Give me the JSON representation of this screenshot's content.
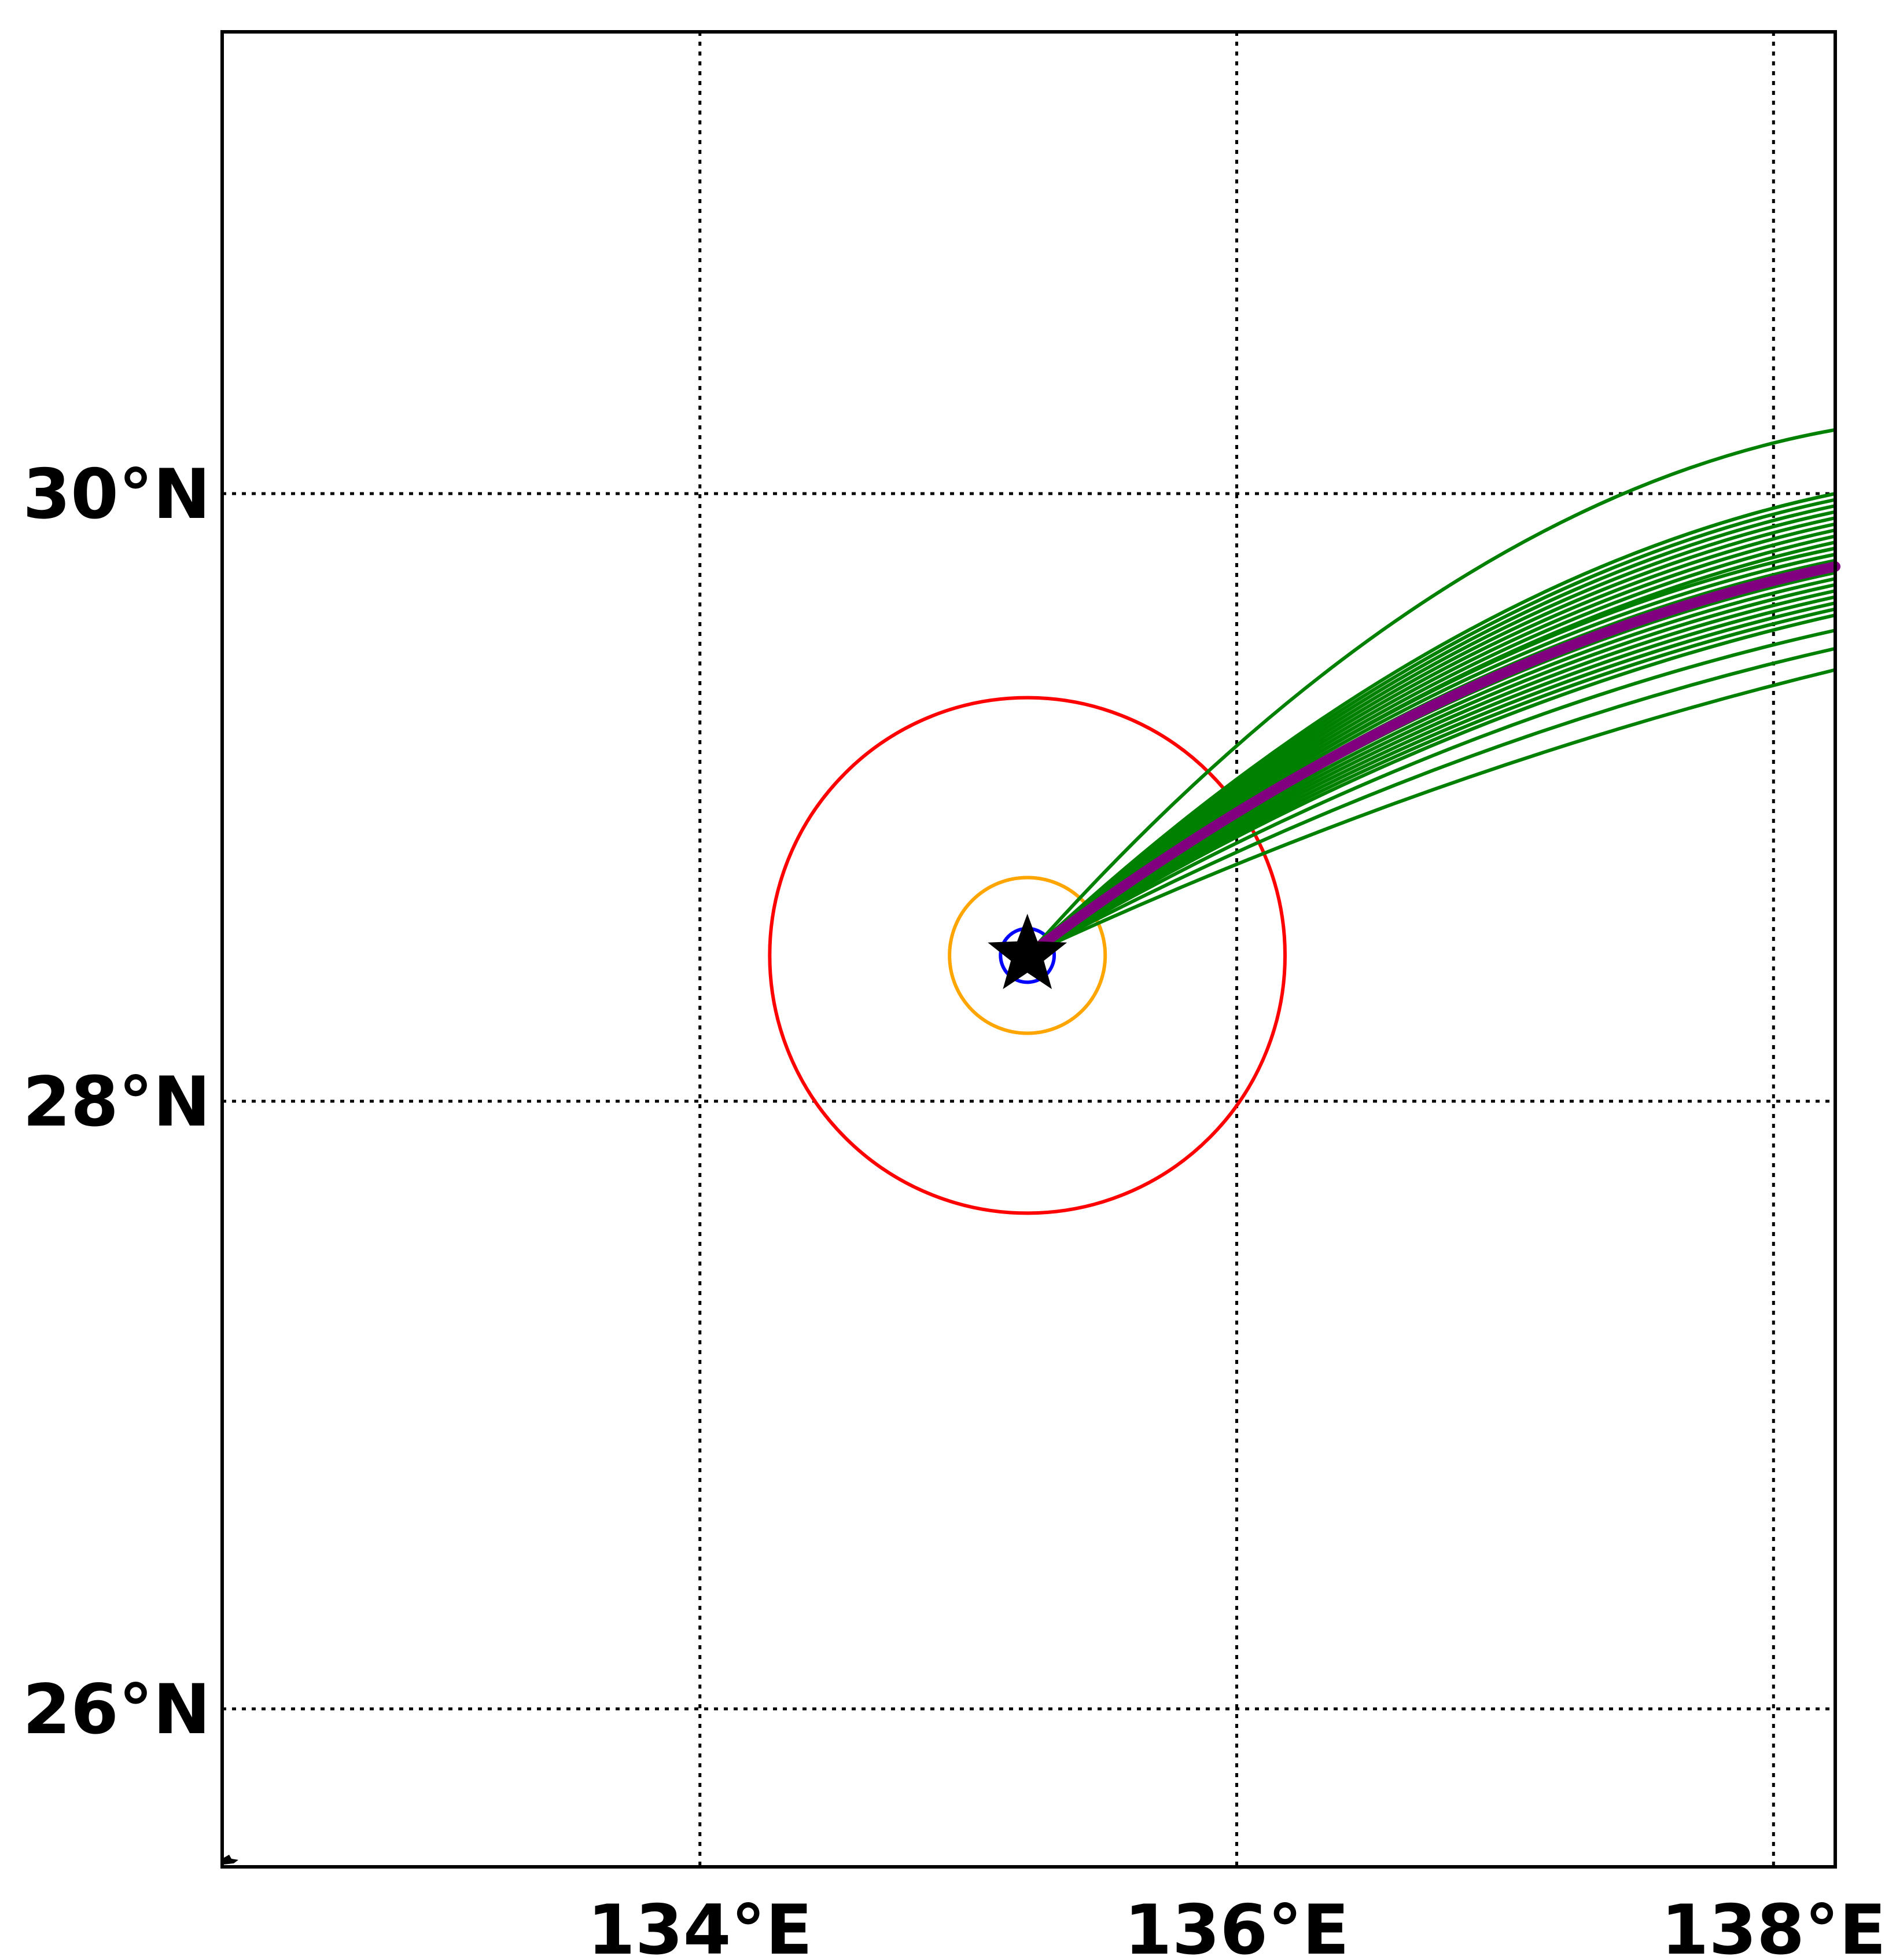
{
  "chart_data": {
    "type": "map",
    "xlim": [
      132.22,
      138.23
    ],
    "ylim": [
      25.48,
      31.52
    ],
    "grid": "dotted",
    "x_ticks": [
      {
        "value": 134,
        "label": "134°E"
      },
      {
        "value": 136,
        "label": "136°E"
      },
      {
        "value": 138,
        "label": "138°E"
      }
    ],
    "y_ticks": [
      {
        "value": 26,
        "label": "26°N"
      },
      {
        "value": 28,
        "label": "28°N"
      },
      {
        "value": 30,
        "label": "30°N"
      }
    ],
    "storm_center": {
      "lon": 135.22,
      "lat": 28.48,
      "marker": "star",
      "color": "#000000"
    },
    "rings": [
      {
        "name": "inner",
        "color": "#0000ff",
        "radius_deg": 0.1
      },
      {
        "name": "middle",
        "color": "#ffa500",
        "radius_deg": 0.29
      },
      {
        "name": "outer",
        "color": "#ff0000",
        "radius_deg": 0.96
      }
    ],
    "ensemble_color": "#008000",
    "mean_track_color": "#800080",
    "mean_track": {
      "end_lat": 29.76,
      "mid_lat": 28.95
    },
    "ensemble_tracks": [
      {
        "end_lat": 30.21,
        "mid_lat": 29.17
      },
      {
        "end_lat": 30.0,
        "mid_lat": 29.06
      },
      {
        "end_lat": 29.98,
        "mid_lat": 29.05
      },
      {
        "end_lat": 29.96,
        "mid_lat": 29.04
      },
      {
        "end_lat": 29.94,
        "mid_lat": 29.03
      },
      {
        "end_lat": 29.92,
        "mid_lat": 29.02
      },
      {
        "end_lat": 29.9,
        "mid_lat": 29.01
      },
      {
        "end_lat": 29.88,
        "mid_lat": 29.0
      },
      {
        "end_lat": 29.86,
        "mid_lat": 28.99
      },
      {
        "end_lat": 29.84,
        "mid_lat": 28.98
      },
      {
        "end_lat": 29.82,
        "mid_lat": 28.98
      },
      {
        "end_lat": 29.8,
        "mid_lat": 28.97
      },
      {
        "end_lat": 29.78,
        "mid_lat": 28.96
      },
      {
        "end_lat": 29.76,
        "mid_lat": 28.95
      },
      {
        "end_lat": 29.74,
        "mid_lat": 28.94
      },
      {
        "end_lat": 29.72,
        "mid_lat": 28.93
      },
      {
        "end_lat": 29.7,
        "mid_lat": 28.92
      },
      {
        "end_lat": 29.68,
        "mid_lat": 28.91
      },
      {
        "end_lat": 29.66,
        "mid_lat": 28.9
      },
      {
        "end_lat": 29.64,
        "mid_lat": 28.89
      },
      {
        "end_lat": 29.62,
        "mid_lat": 28.88
      },
      {
        "end_lat": 29.6,
        "mid_lat": 28.87
      },
      {
        "end_lat": 29.55,
        "mid_lat": 28.85
      },
      {
        "end_lat": 29.49,
        "mid_lat": 28.82
      },
      {
        "end_lat": 29.42,
        "mid_lat": 28.78
      }
    ],
    "end_lon": 138.23,
    "mid_lon": 136.0
  }
}
